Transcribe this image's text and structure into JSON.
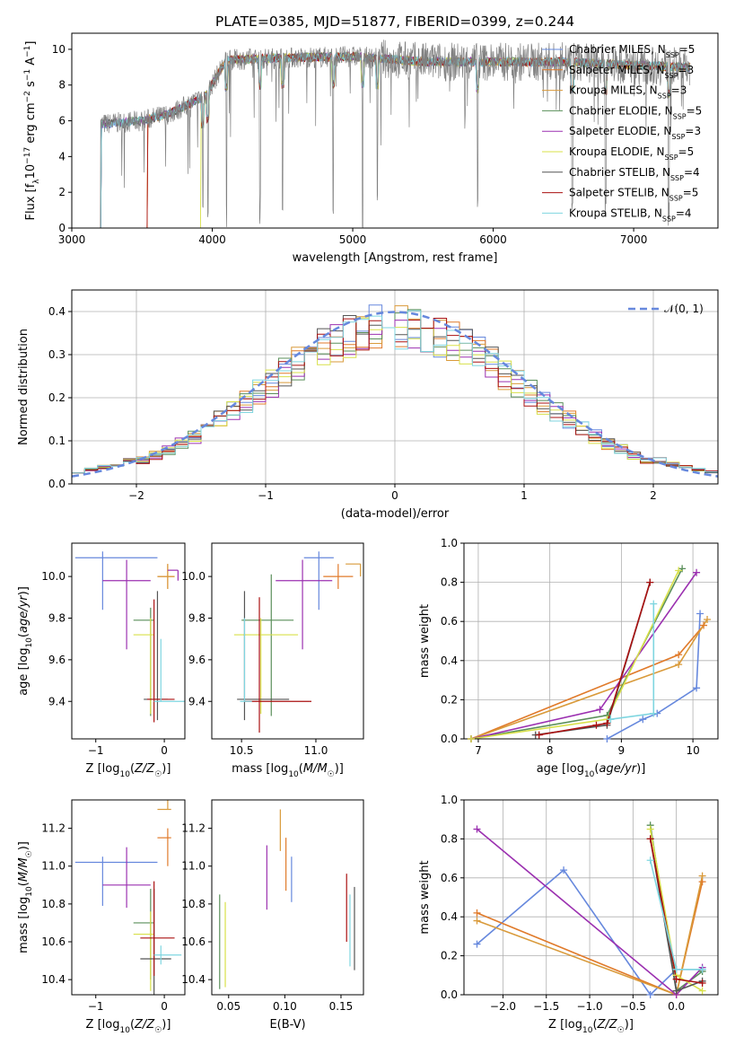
{
  "title": "PLATE=0385, MJD=51877, FIBERID=0399, z=0.244",
  "colors": {
    "Chabrier MILES": "#6688dd",
    "Salpeter MILES": "#e07a2a",
    "Kroupa MILES": "#d99a3a",
    "Chabrier ELODIE": "#5a8f5a",
    "Salpeter ELODIE": "#9b30b0",
    "Kroupa ELODIE": "#d8e04a",
    "Chabrier STELIB": "#555555",
    "Salpeter STELIB": "#aa1111",
    "Kroupa STELIB": "#7fd6e0",
    "data": "#808080"
  },
  "chart_data": [
    {
      "id": "spectrum",
      "type": "line",
      "title": "PLATE=0385, MJD=51877, FIBERID=0399, z=0.244",
      "xlabel": "wavelength [Angstrom, rest frame]",
      "ylabel": "Flux [f_λ10^-17 erg cm^-2 s^-1 A^-1]",
      "xlim": [
        3000,
        7600
      ],
      "ylim": [
        0,
        10.9
      ],
      "xticks": [
        3000,
        4000,
        5000,
        6000,
        7000
      ],
      "yticks": [
        0,
        2,
        4,
        6,
        8,
        10
      ],
      "legend_placement": "upper right",
      "legend": [
        {
          "name": "Chabrier MILES",
          "nssp": 5
        },
        {
          "name": "Salpeter MILES",
          "nssp": 3
        },
        {
          "name": "Kroupa MILES",
          "nssp": 3
        },
        {
          "name": "Chabrier ELODIE",
          "nssp": 5
        },
        {
          "name": "Salpeter ELODIE",
          "nssp": 3
        },
        {
          "name": "Kroupa ELODIE",
          "nssp": 5
        },
        {
          "name": "Chabrier STELIB",
          "nssp": 4
        },
        {
          "name": "Salpeter STELIB",
          "nssp": 5
        },
        {
          "name": "Kroupa STELIB",
          "nssp": 4
        }
      ],
      "continuum": [
        [
          3200,
          5.8
        ],
        [
          3500,
          6.0
        ],
        [
          3700,
          6.4
        ],
        [
          3950,
          7.4
        ],
        [
          4100,
          9.4
        ],
        [
          4400,
          9.5
        ],
        [
          5000,
          9.6
        ],
        [
          5500,
          9.3
        ],
        [
          6000,
          9.3
        ],
        [
          6500,
          9.3
        ],
        [
          7000,
          9.1
        ],
        [
          7400,
          9.0
        ]
      ],
      "model_starts": [
        [
          3200,
          3200
        ],
        [
          3520,
          3550
        ],
        [
          3900,
          3920
        ]
      ],
      "absorption_lines": [
        3934,
        3969,
        4102,
        4340,
        4500,
        4861,
        5070,
        5175,
        5890,
        6563,
        6800,
        7250
      ]
    },
    {
      "id": "residuals",
      "type": "histogram",
      "xlabel": "(data-model)/error",
      "ylabel": "Normed distribution",
      "xlim": [
        -2.5,
        2.5
      ],
      "ylim": [
        0,
        0.45
      ],
      "xticks": [
        -2,
        -1,
        0,
        1,
        2
      ],
      "yticks": [
        0.0,
        0.1,
        0.2,
        0.3,
        0.4
      ],
      "reference_curve": "N(0,1)",
      "legend_placement": "upper right",
      "grid": true
    },
    {
      "id": "age-vs-Z",
      "type": "errorbar",
      "xlabel": "Z [log10(Z/Z☉)]",
      "ylabel": "age [log10(age/yr)]",
      "xlim": [
        -1.35,
        0.3
      ],
      "ylim": [
        9.22,
        10.16
      ],
      "xticks": [
        -1,
        0
      ],
      "yticks": [
        9.4,
        9.6,
        9.8,
        10.0
      ],
      "points": [
        {
          "model": "Chabrier MILES",
          "x": -0.9,
          "xerr": [
            0.4,
            0.8
          ],
          "y": 10.09,
          "yerr": [
            0.25,
            0.03
          ]
        },
        {
          "model": "Salpeter ELODIE",
          "x": -0.55,
          "xerr": [
            0.35,
            0.35
          ],
          "y": 9.98,
          "yerr": [
            0.33,
            0.1
          ]
        },
        {
          "model": "Salpeter MILES",
          "x": 0.05,
          "xerr": [
            0.15,
            0.1
          ],
          "y": 10.0,
          "yerr": [
            0.06,
            0.06
          ]
        },
        {
          "model": "Kroupa MILES",
          "x": 0.05,
          "xerr": [
            0.15,
            0.1
          ],
          "y": 10.0,
          "yerr": [
            0.06,
            0.06
          ]
        },
        {
          "model": "Chabrier ELODIE",
          "x": -0.2,
          "xerr": [
            0.25,
            0.05
          ],
          "y": 9.79,
          "yerr": [
            0.46,
            0.06
          ]
        },
        {
          "model": "Kroupa ELODIE",
          "x": -0.2,
          "xerr": [
            0.25,
            0.05
          ],
          "y": 9.72,
          "yerr": [
            0.38,
            0.08
          ]
        },
        {
          "model": "Chabrier STELIB",
          "x": -0.1,
          "xerr": [
            0.2,
            0.15
          ],
          "y": 9.41,
          "yerr": [
            0.1,
            0.52
          ]
        },
        {
          "model": "Salpeter STELIB",
          "x": -0.15,
          "xerr": [
            0.1,
            0.3
          ],
          "y": 9.41,
          "yerr": [
            0.11,
            0.48
          ]
        },
        {
          "model": "Kroupa STELIB",
          "x": -0.05,
          "xerr": [
            0.1,
            0.35
          ],
          "y": 9.4,
          "yerr": [
            0.0,
            0.3
          ]
        },
        {
          "model": "Salpeter ELODIE",
          "x": 0.2,
          "xerr": [
            0.15,
            0.0
          ],
          "y": 10.03,
          "yerr": [
            0.05,
            0.0
          ]
        }
      ]
    },
    {
      "id": "age-vs-mass",
      "type": "errorbar",
      "xlabel": "mass [log10(M/M☉)]",
      "ylabel": "",
      "xlim": [
        10.3,
        11.32
      ],
      "ylim": [
        9.22,
        10.16
      ],
      "xticks": [
        10.5,
        11.0
      ],
      "yticks": [
        9.4,
        9.6,
        9.8,
        10.0
      ],
      "points": [
        {
          "model": "Chabrier MILES",
          "x": 11.02,
          "xerr": [
            0.1,
            0.1
          ],
          "y": 10.09,
          "yerr": [
            0.25,
            0.03
          ]
        },
        {
          "model": "Salpeter ELODIE",
          "x": 10.91,
          "xerr": [
            0.18,
            0.2
          ],
          "y": 9.98,
          "yerr": [
            0.33,
            0.1
          ]
        },
        {
          "model": "Salpeter MILES",
          "x": 11.15,
          "xerr": [
            0.1,
            0.1
          ],
          "y": 10.0,
          "yerr": [
            0.06,
            0.06
          ]
        },
        {
          "model": "Kroupa MILES",
          "x": 11.3,
          "xerr": [
            0.1,
            0.0
          ],
          "y": 10.06,
          "yerr": [
            0.06,
            0.0
          ]
        },
        {
          "model": "Chabrier ELODIE",
          "x": 10.7,
          "xerr": [
            0.2,
            0.15
          ],
          "y": 9.79,
          "yerr": [
            0.46,
            0.22
          ]
        },
        {
          "model": "Kroupa ELODIE",
          "x": 10.63,
          "xerr": [
            0.18,
            0.25
          ],
          "y": 9.72,
          "yerr": [
            0.38,
            0.08
          ]
        },
        {
          "model": "Chabrier STELIB",
          "x": 10.52,
          "xerr": [
            0.05,
            0.3
          ],
          "y": 9.41,
          "yerr": [
            0.1,
            0.52
          ]
        },
        {
          "model": "Salpeter STELIB",
          "x": 10.62,
          "xerr": [
            0.1,
            0.35
          ],
          "y": 9.4,
          "yerr": [
            0.15,
            0.5
          ]
        },
        {
          "model": "Kroupa STELIB",
          "x": 10.52,
          "xerr": [
            0.03,
            0.05
          ],
          "y": 9.4,
          "yerr": [
            0.0,
            0.4
          ]
        }
      ]
    },
    {
      "id": "mass-weight-vs-age",
      "type": "line",
      "xlabel": "age [log10(age/yr)]",
      "ylabel": "mass weight",
      "xlim": [
        6.8,
        10.35
      ],
      "ylim": [
        0,
        1.0
      ],
      "xticks": [
        7,
        8,
        9,
        10
      ],
      "yticks": [
        0.0,
        0.2,
        0.4,
        0.6,
        0.8,
        1.0
      ],
      "grid": true,
      "series": [
        {
          "model": "Chabrier MILES",
          "x": [
            8.8,
            9.3,
            9.5,
            10.05,
            10.1
          ],
          "y": [
            0.0,
            0.1,
            0.13,
            0.26,
            0.64
          ]
        },
        {
          "model": "Salpeter MILES",
          "x": [
            6.9,
            9.8,
            10.15
          ],
          "y": [
            0.0,
            0.43,
            0.58
          ]
        },
        {
          "model": "Kroupa MILES",
          "x": [
            6.9,
            9.8,
            10.2
          ],
          "y": [
            0.0,
            0.38,
            0.61
          ]
        },
        {
          "model": "Chabrier ELODIE",
          "x": [
            6.9,
            8.8,
            9.85
          ],
          "y": [
            0.0,
            0.12,
            0.87
          ]
        },
        {
          "model": "Salpeter ELODIE",
          "x": [
            6.9,
            8.7,
            10.05
          ],
          "y": [
            0.0,
            0.15,
            0.85
          ]
        },
        {
          "model": "Kroupa ELODIE",
          "x": [
            6.9,
            8.8,
            9.8
          ],
          "y": [
            0.0,
            0.1,
            0.86
          ]
        },
        {
          "model": "Chabrier STELIB",
          "x": [
            7.8,
            8.8,
            9.4
          ],
          "y": [
            0.02,
            0.07,
            0.8
          ]
        },
        {
          "model": "Salpeter STELIB",
          "x": [
            7.85,
            8.65,
            8.8,
            9.4
          ],
          "y": [
            0.02,
            0.07,
            0.08,
            0.8
          ]
        },
        {
          "model": "Kroupa STELIB",
          "x": [
            8.85,
            9.45,
            9.45
          ],
          "y": [
            0.1,
            0.13,
            0.69
          ]
        }
      ]
    },
    {
      "id": "mass-vs-Z",
      "type": "errorbar",
      "xlabel": "Z [log10(Z/Z☉)]",
      "ylabel": "mass [log10(M/M☉)]",
      "xlim": [
        -1.35,
        0.3
      ],
      "ylim": [
        10.32,
        11.35
      ],
      "xticks": [
        -1,
        0
      ],
      "yticks": [
        10.4,
        10.6,
        10.8,
        11.0,
        11.2
      ],
      "points": [
        {
          "model": "Chabrier MILES",
          "x": -0.9,
          "xerr": [
            0.4,
            0.8
          ],
          "y": 11.02,
          "yerr": [
            0.23,
            0.03
          ]
        },
        {
          "model": "Salpeter ELODIE",
          "x": -0.55,
          "xerr": [
            0.35,
            0.35
          ],
          "y": 10.9,
          "yerr": [
            0.12,
            0.2
          ]
        },
        {
          "model": "Salpeter MILES",
          "x": 0.05,
          "xerr": [
            0.15,
            0.05
          ],
          "y": 11.15,
          "yerr": [
            0.15,
            0.05
          ]
        },
        {
          "model": "Kroupa MILES",
          "x": 0.05,
          "xerr": [
            0.15,
            0.05
          ],
          "y": 11.3,
          "yerr": [
            0.0,
            0.05
          ]
        },
        {
          "model": "Chabrier ELODIE",
          "x": -0.2,
          "xerr": [
            0.25,
            0.05
          ],
          "y": 10.7,
          "yerr": [
            0.3,
            0.18
          ]
        },
        {
          "model": "Kroupa ELODIE",
          "x": -0.2,
          "xerr": [
            0.25,
            0.05
          ],
          "y": 10.64,
          "yerr": [
            0.3,
            0.12
          ]
        },
        {
          "model": "Chabrier STELIB",
          "x": -0.15,
          "xerr": [
            0.2,
            0.25
          ],
          "y": 10.51,
          "yerr": [
            0.2,
            0.37
          ]
        },
        {
          "model": "Salpeter STELIB",
          "x": -0.15,
          "xerr": [
            0.2,
            0.3
          ],
          "y": 10.62,
          "yerr": [
            0.2,
            0.3
          ]
        },
        {
          "model": "Kroupa STELIB",
          "x": -0.05,
          "xerr": [
            0.1,
            0.3
          ],
          "y": 10.53,
          "yerr": [
            0.05,
            0.05
          ]
        }
      ]
    },
    {
      "id": "mass-vs-ebv",
      "type": "errorbar",
      "xlabel": "E(B-V)",
      "ylabel": "",
      "xlim": [
        0.035,
        0.17
      ],
      "ylim": [
        10.32,
        11.35
      ],
      "xticks": [
        0.05,
        0.1,
        0.15
      ],
      "yticks": [
        10.4,
        10.6,
        10.8,
        11.0,
        11.2
      ],
      "points": [
        {
          "model": "Kroupa ELODIE",
          "x": 0.047,
          "y": 10.56,
          "yerr": [
            0.2,
            0.25
          ]
        },
        {
          "model": "Chabrier ELODIE",
          "x": 0.042,
          "y": 10.6,
          "yerr": [
            0.25,
            0.25
          ]
        },
        {
          "model": "Salpeter ELODIE",
          "x": 0.084,
          "y": 10.94,
          "yerr": [
            0.17,
            0.17
          ]
        },
        {
          "model": "Kroupa MILES",
          "x": 0.096,
          "y": 11.2,
          "yerr": [
            0.12,
            0.1
          ]
        },
        {
          "model": "Salpeter MILES",
          "x": 0.101,
          "y": 11.0,
          "yerr": [
            0.13,
            0.15
          ]
        },
        {
          "model": "Chabrier MILES",
          "x": 0.106,
          "y": 10.95,
          "yerr": [
            0.14,
            0.1
          ]
        },
        {
          "model": "Salpeter STELIB",
          "x": 0.155,
          "y": 10.78,
          "yerr": [
            0.18,
            0.18
          ]
        },
        {
          "model": "Kroupa STELIB",
          "x": 0.158,
          "y": 10.65,
          "yerr": [
            0.18,
            0.2
          ]
        },
        {
          "model": "Chabrier STELIB",
          "x": 0.162,
          "y": 10.67,
          "yerr": [
            0.22,
            0.22
          ]
        }
      ]
    },
    {
      "id": "mass-weight-vs-Z",
      "type": "line",
      "xlabel": "Z [log10(Z/Z☉)]",
      "ylabel": "mass weight",
      "xlim": [
        -2.45,
        0.48
      ],
      "ylim": [
        0,
        1.0
      ],
      "xticks": [
        -2.0,
        -1.5,
        -1.0,
        -0.5,
        0.0
      ],
      "yticks": [
        0.0,
        0.2,
        0.4,
        0.6,
        0.8,
        1.0
      ],
      "grid": true,
      "series": [
        {
          "model": "Chabrier MILES",
          "x": [
            -2.3,
            -1.3,
            -0.3,
            0.0,
            0.3
          ],
          "y": [
            0.26,
            0.64,
            0.0,
            0.13,
            0.13
          ]
        },
        {
          "model": "Salpeter MILES",
          "x": [
            -2.3,
            0.0,
            0.3
          ],
          "y": [
            0.42,
            0.0,
            0.58
          ]
        },
        {
          "model": "Kroupa MILES",
          "x": [
            -2.3,
            0.0,
            0.3
          ],
          "y": [
            0.38,
            0.0,
            0.61
          ]
        },
        {
          "model": "Chabrier ELODIE",
          "x": [
            -0.3,
            0.0,
            0.3
          ],
          "y": [
            0.87,
            0.02,
            0.12
          ]
        },
        {
          "model": "Salpeter ELODIE",
          "x": [
            -2.3,
            0.0,
            0.3
          ],
          "y": [
            0.85,
            0.0,
            0.14
          ]
        },
        {
          "model": "Kroupa ELODIE",
          "x": [
            -0.3,
            0.0,
            0.3
          ],
          "y": [
            0.85,
            0.1,
            0.02
          ]
        },
        {
          "model": "Chabrier STELIB",
          "x": [
            -0.3,
            0.0,
            0.3
          ],
          "y": [
            0.8,
            0.02,
            0.07
          ]
        },
        {
          "model": "Salpeter STELIB",
          "x": [
            -0.3,
            0.0,
            0.3
          ],
          "y": [
            0.8,
            0.08,
            0.06
          ]
        },
        {
          "model": "Kroupa STELIB",
          "x": [
            -0.3,
            0.0,
            0.3
          ],
          "y": [
            0.69,
            0.13,
            0.13
          ]
        }
      ]
    }
  ]
}
